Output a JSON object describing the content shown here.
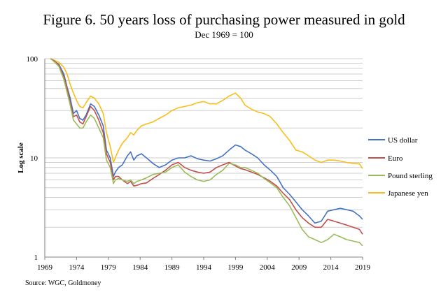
{
  "chart_data": {
    "type": "line",
    "title": "Figure 6. 50 years loss of purchasing power measured in gold",
    "subtitle": "Dec 1969 = 100",
    "ylabel": "Log scale",
    "xlabel": "",
    "yscale": "log",
    "ylim": [
      1,
      100
    ],
    "xlim": [
      1969,
      2019
    ],
    "y_ticks": [
      "1",
      "10",
      "100"
    ],
    "x_ticks": [
      "1969",
      "1974",
      "1979",
      "1984",
      "1989",
      "1994",
      "1999",
      "2004",
      "2009",
      "2014",
      "2019"
    ],
    "grid": true,
    "legend_position": "right",
    "source": "Source: WGC, Goldmoney",
    "series": [
      {
        "name": "US dollar",
        "color": "#4472C4",
        "x": [
          1969.9,
          1970.5,
          1971.2,
          1972.0,
          1972.5,
          1973.0,
          1973.5,
          1974.0,
          1974.5,
          1975.0,
          1975.5,
          1976.2,
          1976.8,
          1977.5,
          1978.2,
          1978.7,
          1979.3,
          1979.8,
          1980.1,
          1980.6,
          1981.2,
          1982.0,
          1982.5,
          1983.0,
          1983.5,
          1984.2,
          1985.0,
          1986.0,
          1987.0,
          1988.0,
          1989.0,
          1990.0,
          1991.0,
          1992.0,
          1993.0,
          1994.0,
          1995.0,
          1996.0,
          1997.0,
          1998.0,
          1999.0,
          1999.8,
          2000.5,
          2001.5,
          2002.5,
          2003.5,
          2004.5,
          2005.5,
          2006.5,
          2007.5,
          2008.5,
          2009.5,
          2010.5,
          2011.5,
          2012.5,
          2013.5,
          2014.5,
          2015.5,
          2016.5,
          2017.5,
          2018.5,
          2019.0
        ],
        "values": [
          100,
          94,
          88,
          70,
          52,
          40,
          28,
          30,
          25,
          24,
          27,
          35,
          33,
          27,
          21,
          12,
          10,
          6.5,
          7.2,
          8.0,
          8.5,
          10.5,
          11.5,
          9.5,
          10.5,
          11.0,
          10.0,
          8.8,
          8.0,
          8.5,
          9.5,
          10.0,
          10.0,
          10.5,
          9.8,
          9.5,
          9.3,
          9.8,
          10.5,
          12.0,
          13.5,
          13.0,
          12.0,
          11.0,
          10.0,
          8.5,
          7.5,
          6.5,
          5.0,
          4.3,
          3.6,
          3.0,
          2.6,
          2.2,
          2.3,
          2.9,
          3.0,
          3.1,
          3.0,
          2.9,
          2.6,
          2.4
        ]
      },
      {
        "name": "Euro",
        "color": "#C0504D",
        "x": [
          1969.9,
          1970.5,
          1971.2,
          1972.0,
          1972.5,
          1973.0,
          1973.5,
          1974.0,
          1974.5,
          1975.0,
          1975.5,
          1976.2,
          1976.8,
          1977.5,
          1978.2,
          1978.7,
          1979.3,
          1979.8,
          1980.1,
          1980.6,
          1981.2,
          1982.0,
          1982.5,
          1983.0,
          1983.5,
          1984.2,
          1985.0,
          1986.0,
          1987.0,
          1988.0,
          1989.0,
          1990.0,
          1991.0,
          1992.0,
          1993.0,
          1994.0,
          1995.0,
          1996.0,
          1997.0,
          1998.0,
          1999.0,
          1999.8,
          2000.5,
          2001.5,
          2002.5,
          2003.5,
          2004.5,
          2005.5,
          2006.5,
          2007.5,
          2008.5,
          2009.5,
          2010.5,
          2011.5,
          2012.5,
          2013.5,
          2014.5,
          2015.5,
          2016.5,
          2017.5,
          2018.5,
          2019.0
        ],
        "values": [
          100,
          95,
          86,
          66,
          50,
          36,
          26,
          27,
          23,
          22,
          26,
          33,
          30,
          24,
          18,
          11,
          9,
          6.0,
          6.5,
          6.5,
          6.0,
          5.5,
          5.8,
          5.2,
          5.3,
          5.5,
          5.6,
          6.2,
          6.8,
          7.5,
          8.5,
          9.0,
          8.0,
          7.5,
          7.2,
          7.0,
          7.2,
          8.0,
          8.5,
          9.0,
          8.3,
          7.8,
          7.6,
          7.2,
          6.8,
          6.3,
          5.8,
          5.2,
          4.4,
          3.8,
          3.0,
          2.5,
          2.2,
          2.0,
          2.0,
          2.4,
          2.3,
          2.2,
          2.1,
          2.0,
          1.9,
          1.7
        ]
      },
      {
        "name": "Pound sterling",
        "color": "#9BBB59",
        "x": [
          1969.9,
          1970.5,
          1971.2,
          1972.0,
          1972.5,
          1973.0,
          1973.5,
          1974.0,
          1974.5,
          1975.0,
          1975.5,
          1976.2,
          1976.8,
          1977.5,
          1978.2,
          1978.7,
          1979.3,
          1979.8,
          1980.1,
          1980.6,
          1981.2,
          1982.0,
          1982.5,
          1983.0,
          1983.5,
          1984.2,
          1985.0,
          1986.0,
          1987.0,
          1988.0,
          1989.0,
          1990.0,
          1991.0,
          1992.0,
          1993.0,
          1994.0,
          1995.0,
          1996.0,
          1997.0,
          1998.0,
          1999.0,
          1999.8,
          2000.5,
          2001.5,
          2002.5,
          2003.5,
          2004.5,
          2005.5,
          2006.5,
          2007.5,
          2008.5,
          2009.5,
          2010.5,
          2011.5,
          2012.5,
          2013.5,
          2014.5,
          2015.5,
          2016.5,
          2017.5,
          2018.5,
          2019.0
        ],
        "values": [
          100,
          93,
          84,
          62,
          46,
          34,
          24,
          22,
          20,
          20,
          23,
          27,
          25,
          20,
          16,
          9.5,
          8,
          5.5,
          6.0,
          6.2,
          6.0,
          5.8,
          6.0,
          5.5,
          5.8,
          6.0,
          6.3,
          6.8,
          7.0,
          7.2,
          8.0,
          8.5,
          7.2,
          6.5,
          6.0,
          5.8,
          6.0,
          6.8,
          7.5,
          8.8,
          8.5,
          8.0,
          8.0,
          7.5,
          7.0,
          6.2,
          5.6,
          5.0,
          4.0,
          3.3,
          2.5,
          1.9,
          1.6,
          1.5,
          1.4,
          1.5,
          1.7,
          1.6,
          1.5,
          1.45,
          1.4,
          1.3
        ]
      },
      {
        "name": "Japanese yen",
        "color": "#F9BE1A",
        "x": [
          1969.9,
          1970.5,
          1971.2,
          1972.0,
          1972.5,
          1973.0,
          1973.5,
          1974.0,
          1974.5,
          1975.0,
          1975.5,
          1976.2,
          1976.8,
          1977.5,
          1978.2,
          1978.7,
          1979.3,
          1979.8,
          1980.1,
          1980.6,
          1981.2,
          1982.0,
          1982.5,
          1983.0,
          1983.5,
          1984.2,
          1985.0,
          1986.0,
          1987.0,
          1988.0,
          1989.0,
          1990.0,
          1991.0,
          1992.0,
          1993.0,
          1994.0,
          1995.0,
          1996.0,
          1997.0,
          1998.0,
          1999.0,
          1999.8,
          2000.5,
          2001.5,
          2002.5,
          2003.5,
          2004.5,
          2005.5,
          2006.5,
          2007.5,
          2008.5,
          2009.5,
          2010.5,
          2011.5,
          2012.5,
          2013.5,
          2014.5,
          2015.5,
          2016.5,
          2017.5,
          2018.5,
          2019.0
        ],
        "values": [
          100,
          96,
          92,
          82,
          70,
          55,
          45,
          38,
          33,
          32,
          36,
          42,
          40,
          35,
          28,
          18,
          13,
          9.0,
          10.0,
          12.0,
          14.0,
          16.0,
          18.0,
          17.0,
          19.0,
          21.0,
          22.0,
          23.0,
          25.0,
          27.0,
          30.0,
          32.0,
          33.0,
          34.0,
          36.0,
          37.0,
          35.0,
          35.0,
          38.0,
          42.0,
          45.0,
          40.0,
          34.0,
          31.0,
          29.0,
          28.0,
          26.0,
          22.0,
          18.0,
          15.0,
          12.0,
          11.5,
          10.5,
          9.5,
          9.0,
          9.5,
          9.5,
          9.3,
          9.0,
          8.8,
          8.7,
          7.8
        ]
      }
    ]
  }
}
